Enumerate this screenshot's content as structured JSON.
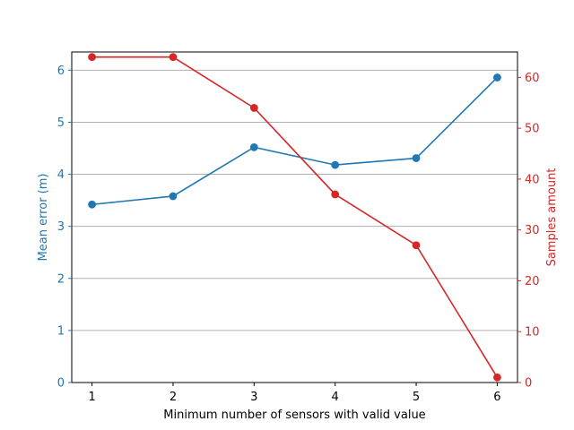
{
  "chart_data": {
    "type": "line",
    "x": [
      1,
      2,
      3,
      4,
      5,
      6
    ],
    "xlabel": "Minimum number of sensors with valid value",
    "xlim": [
      0.75,
      6.25
    ],
    "xticks": [
      1,
      2,
      3,
      4,
      5,
      6
    ],
    "grid": "horizontal-major-left-axis",
    "series": [
      {
        "axis": "left",
        "color": "#1f77b4",
        "marker": "circle",
        "values": [
          3.42,
          3.58,
          4.52,
          4.18,
          4.31,
          5.86
        ]
      },
      {
        "axis": "right",
        "color": "#d62728",
        "marker": "circle",
        "values": [
          64,
          64,
          54,
          37,
          27,
          1
        ]
      }
    ],
    "y_left": {
      "label": "Mean error (m)",
      "color": "#1f77b4",
      "lim": [
        0,
        6.35
      ],
      "ticks": [
        0,
        1,
        2,
        3,
        4,
        5,
        6
      ]
    },
    "y_right": {
      "label": "Samples amount",
      "color": "#d62728",
      "lim": [
        0,
        65
      ],
      "ticks": [
        0,
        10,
        20,
        30,
        40,
        50,
        60
      ]
    }
  }
}
